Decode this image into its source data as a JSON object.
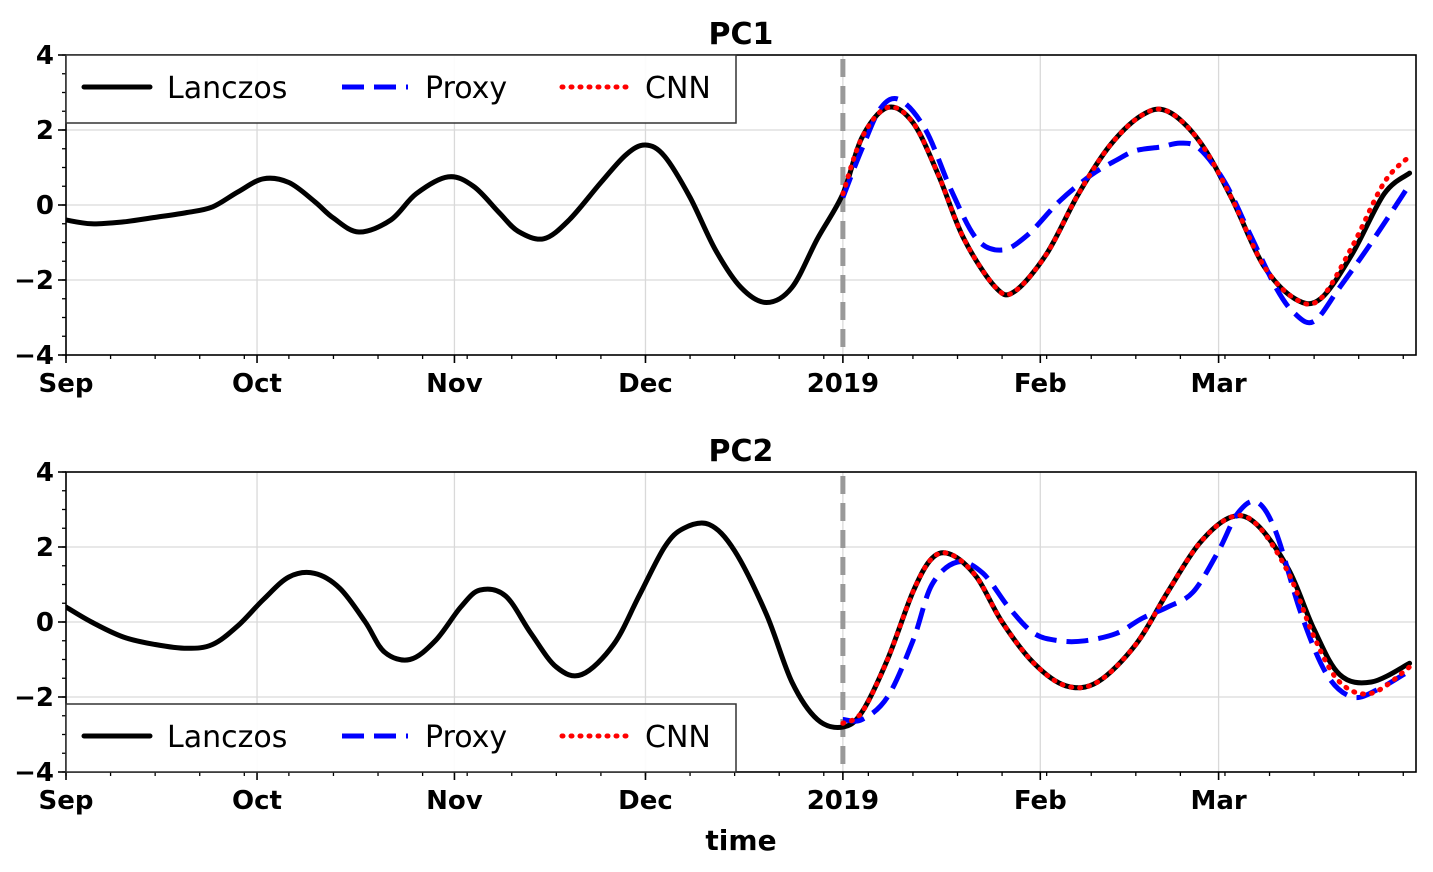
{
  "chart_data": [
    {
      "type": "line",
      "title": "PC1",
      "xlabel": "",
      "ylabel": "",
      "ylim": [
        -4,
        4
      ],
      "xlim": [
        "2018-09-01",
        "2019-04-01"
      ],
      "x_ticks": [
        {
          "date": "2018-09-01",
          "label": "Sep"
        },
        {
          "date": "2018-10-01",
          "label": "Oct"
        },
        {
          "date": "2018-11-01",
          "label": "Nov"
        },
        {
          "date": "2018-12-01",
          "label": "Dec"
        },
        {
          "date": "2019-01-01",
          "label": "2019"
        },
        {
          "date": "2019-02-01",
          "label": "Feb"
        },
        {
          "date": "2019-03-01",
          "label": "Mar"
        }
      ],
      "y_ticks": [
        {
          "value": -4,
          "label": "−4"
        },
        {
          "value": -2,
          "label": "−2"
        },
        {
          "value": 0,
          "label": "0"
        },
        {
          "value": 2,
          "label": "2"
        },
        {
          "value": 4,
          "label": "4"
        }
      ],
      "grid": true,
      "legend_position": "top-left",
      "forecast_start_line": "2019-01-01",
      "series": [
        {
          "name": "Lanczos",
          "color": "#000000",
          "style": "solid",
          "points": [
            [
              "2018-09-01",
              -0.4
            ],
            [
              "2018-09-05",
              -0.5
            ],
            [
              "2018-09-10",
              -0.45
            ],
            [
              "2018-09-15",
              -0.33
            ],
            [
              "2018-09-20",
              -0.2
            ],
            [
              "2018-09-24",
              -0.05
            ],
            [
              "2018-09-28",
              0.35
            ],
            [
              "2018-10-02",
              0.7
            ],
            [
              "2018-10-06",
              0.6
            ],
            [
              "2018-10-10",
              0.1
            ],
            [
              "2018-10-13",
              -0.35
            ],
            [
              "2018-10-17",
              -0.72
            ],
            [
              "2018-10-22",
              -0.4
            ],
            [
              "2018-10-26",
              0.3
            ],
            [
              "2018-10-31",
              0.75
            ],
            [
              "2018-11-04",
              0.5
            ],
            [
              "2018-11-08",
              -0.2
            ],
            [
              "2018-11-11",
              -0.7
            ],
            [
              "2018-11-15",
              -0.9
            ],
            [
              "2018-11-19",
              -0.4
            ],
            [
              "2018-11-24",
              0.6
            ],
            [
              "2018-11-28",
              1.35
            ],
            [
              "2018-12-01",
              1.6
            ],
            [
              "2018-12-04",
              1.3
            ],
            [
              "2018-12-08",
              0.2
            ],
            [
              "2018-12-12",
              -1.2
            ],
            [
              "2018-12-16",
              -2.2
            ],
            [
              "2018-12-20",
              -2.6
            ],
            [
              "2018-12-24",
              -2.2
            ],
            [
              "2018-12-28",
              -0.9
            ],
            [
              "2019-01-01",
              0.3
            ],
            [
              "2019-01-04",
              1.8
            ],
            [
              "2019-01-08",
              2.6
            ],
            [
              "2019-01-12",
              2.2
            ],
            [
              "2019-01-16",
              0.8
            ],
            [
              "2019-01-20",
              -0.9
            ],
            [
              "2019-01-25",
              -2.2
            ],
            [
              "2019-01-28",
              -2.3
            ],
            [
              "2019-02-02",
              -1.3
            ],
            [
              "2019-02-07",
              0.3
            ],
            [
              "2019-02-12",
              1.6
            ],
            [
              "2019-02-17",
              2.4
            ],
            [
              "2019-02-21",
              2.5
            ],
            [
              "2019-02-26",
              1.7
            ],
            [
              "2019-03-03",
              0.2
            ],
            [
              "2019-03-08",
              -1.6
            ],
            [
              "2019-03-13",
              -2.5
            ],
            [
              "2019-03-17",
              -2.5
            ],
            [
              "2019-03-22",
              -1.3
            ],
            [
              "2019-03-27",
              0.3
            ],
            [
              "2019-03-31",
              0.85
            ]
          ]
        },
        {
          "name": "Proxy",
          "color": "#0000ff",
          "style": "dashed",
          "points": [
            [
              "2019-01-01",
              0.2
            ],
            [
              "2019-01-04",
              1.5
            ],
            [
              "2019-01-07",
              2.6
            ],
            [
              "2019-01-10",
              2.8
            ],
            [
              "2019-01-14",
              2.0
            ],
            [
              "2019-01-18",
              0.4
            ],
            [
              "2019-01-22",
              -0.9
            ],
            [
              "2019-01-26",
              -1.2
            ],
            [
              "2019-01-30",
              -0.8
            ],
            [
              "2019-02-04",
              0.1
            ],
            [
              "2019-02-09",
              0.8
            ],
            [
              "2019-02-13",
              1.2
            ],
            [
              "2019-02-16",
              1.45
            ],
            [
              "2019-02-20",
              1.55
            ],
            [
              "2019-02-23",
              1.65
            ],
            [
              "2019-02-26",
              1.5
            ],
            [
              "2019-03-02",
              0.6
            ],
            [
              "2019-03-06",
              -0.8
            ],
            [
              "2019-03-10",
              -2.2
            ],
            [
              "2019-03-13",
              -2.9
            ],
            [
              "2019-03-16",
              -3.1
            ],
            [
              "2019-03-20",
              -2.2
            ],
            [
              "2019-03-25",
              -1.0
            ],
            [
              "2019-03-31",
              0.55
            ]
          ]
        },
        {
          "name": "CNN",
          "color": "#ff0000",
          "style": "dotted",
          "points": [
            [
              "2019-01-01",
              0.3
            ],
            [
              "2019-01-04",
              1.8
            ],
            [
              "2019-01-08",
              2.6
            ],
            [
              "2019-01-12",
              2.2
            ],
            [
              "2019-01-16",
              0.8
            ],
            [
              "2019-01-20",
              -0.9
            ],
            [
              "2019-01-25",
              -2.2
            ],
            [
              "2019-01-28",
              -2.3
            ],
            [
              "2019-02-02",
              -1.3
            ],
            [
              "2019-02-07",
              0.3
            ],
            [
              "2019-02-12",
              1.6
            ],
            [
              "2019-02-17",
              2.4
            ],
            [
              "2019-02-21",
              2.5
            ],
            [
              "2019-02-26",
              1.7
            ],
            [
              "2019-03-03",
              0.2
            ],
            [
              "2019-03-08",
              -1.6
            ],
            [
              "2019-03-13",
              -2.5
            ],
            [
              "2019-03-17",
              -2.5
            ],
            [
              "2019-03-22",
              -1.1
            ],
            [
              "2019-03-27",
              0.6
            ],
            [
              "2019-03-31",
              1.3
            ]
          ]
        }
      ]
    },
    {
      "type": "line",
      "title": "PC2",
      "xlabel": "time",
      "ylabel": "",
      "ylim": [
        -4,
        4
      ],
      "xlim": [
        "2018-09-01",
        "2019-04-01"
      ],
      "x_ticks": [
        {
          "date": "2018-09-01",
          "label": "Sep"
        },
        {
          "date": "2018-10-01",
          "label": "Oct"
        },
        {
          "date": "2018-11-01",
          "label": "Nov"
        },
        {
          "date": "2018-12-01",
          "label": "Dec"
        },
        {
          "date": "2019-01-01",
          "label": "2019"
        },
        {
          "date": "2019-02-01",
          "label": "Feb"
        },
        {
          "date": "2019-03-01",
          "label": "Mar"
        }
      ],
      "y_ticks": [
        {
          "value": -4,
          "label": "−4"
        },
        {
          "value": -2,
          "label": "−2"
        },
        {
          "value": 0,
          "label": "0"
        },
        {
          "value": 2,
          "label": "2"
        },
        {
          "value": 4,
          "label": "4"
        }
      ],
      "grid": true,
      "legend_position": "bottom-left",
      "forecast_start_line": "2019-01-01",
      "series": [
        {
          "name": "Lanczos",
          "color": "#000000",
          "style": "solid",
          "points": [
            [
              "2018-09-01",
              0.4
            ],
            [
              "2018-09-05",
              0.0
            ],
            [
              "2018-09-10",
              -0.4
            ],
            [
              "2018-09-15",
              -0.6
            ],
            [
              "2018-09-20",
              -0.7
            ],
            [
              "2018-09-24",
              -0.6
            ],
            [
              "2018-09-28",
              -0.1
            ],
            [
              "2018-10-02",
              0.6
            ],
            [
              "2018-10-06",
              1.2
            ],
            [
              "2018-10-10",
              1.3
            ],
            [
              "2018-10-14",
              0.9
            ],
            [
              "2018-10-18",
              0.0
            ],
            [
              "2018-10-21",
              -0.8
            ],
            [
              "2018-10-25",
              -1.0
            ],
            [
              "2018-10-29",
              -0.5
            ],
            [
              "2018-11-02",
              0.4
            ],
            [
              "2018-11-05",
              0.85
            ],
            [
              "2018-11-09",
              0.7
            ],
            [
              "2018-11-13",
              -0.3
            ],
            [
              "2018-11-17",
              -1.2
            ],
            [
              "2018-11-21",
              -1.4
            ],
            [
              "2018-11-26",
              -0.6
            ],
            [
              "2018-11-30",
              0.7
            ],
            [
              "2018-12-04",
              2.0
            ],
            [
              "2018-12-07",
              2.5
            ],
            [
              "2018-12-11",
              2.6
            ],
            [
              "2018-12-15",
              1.9
            ],
            [
              "2018-12-20",
              0.2
            ],
            [
              "2018-12-24",
              -1.6
            ],
            [
              "2018-12-28",
              -2.6
            ],
            [
              "2019-01-01",
              -2.8
            ],
            [
              "2019-01-04",
              -2.4
            ],
            [
              "2019-01-08",
              -1.0
            ],
            [
              "2019-01-12",
              0.8
            ],
            [
              "2019-01-15",
              1.7
            ],
            [
              "2019-01-18",
              1.8
            ],
            [
              "2019-01-22",
              1.2
            ],
            [
              "2019-01-26",
              0.0
            ],
            [
              "2019-01-31",
              -1.1
            ],
            [
              "2019-02-05",
              -1.7
            ],
            [
              "2019-02-10",
              -1.6
            ],
            [
              "2019-02-16",
              -0.6
            ],
            [
              "2019-02-21",
              0.8
            ],
            [
              "2019-02-26",
              2.1
            ],
            [
              "2019-03-03",
              2.8
            ],
            [
              "2019-03-07",
              2.6
            ],
            [
              "2019-03-12",
              1.4
            ],
            [
              "2019-03-16",
              -0.2
            ],
            [
              "2019-03-20",
              -1.4
            ],
            [
              "2019-03-25",
              -1.6
            ],
            [
              "2019-03-31",
              -1.1
            ]
          ]
        },
        {
          "name": "Proxy",
          "color": "#0000ff",
          "style": "dashed",
          "points": [
            [
              "2019-01-01",
              -2.6
            ],
            [
              "2019-01-04",
              -2.6
            ],
            [
              "2019-01-08",
              -2.0
            ],
            [
              "2019-01-12",
              -0.5
            ],
            [
              "2019-01-15",
              1.0
            ],
            [
              "2019-01-19",
              1.6
            ],
            [
              "2019-01-23",
              1.3
            ],
            [
              "2019-01-27",
              0.4
            ],
            [
              "2019-01-31",
              -0.3
            ],
            [
              "2019-02-04",
              -0.5
            ],
            [
              "2019-02-08",
              -0.5
            ],
            [
              "2019-02-13",
              -0.3
            ],
            [
              "2019-02-17",
              0.1
            ],
            [
              "2019-02-21",
              0.4
            ],
            [
              "2019-02-25",
              0.8
            ],
            [
              "2019-03-01",
              1.9
            ],
            [
              "2019-03-04",
              2.9
            ],
            [
              "2019-03-07",
              3.2
            ],
            [
              "2019-03-10",
              2.4
            ],
            [
              "2019-03-14",
              0.2
            ],
            [
              "2019-03-18",
              -1.4
            ],
            [
              "2019-03-22",
              -2.0
            ],
            [
              "2019-03-26",
              -1.8
            ],
            [
              "2019-03-31",
              -1.3
            ]
          ]
        },
        {
          "name": "CNN",
          "color": "#ff0000",
          "style": "dotted",
          "points": [
            [
              "2019-01-01",
              -2.7
            ],
            [
              "2019-01-04",
              -2.4
            ],
            [
              "2019-01-08",
              -1.0
            ],
            [
              "2019-01-12",
              0.8
            ],
            [
              "2019-01-15",
              1.7
            ],
            [
              "2019-01-18",
              1.8
            ],
            [
              "2019-01-22",
              1.2
            ],
            [
              "2019-01-26",
              0.0
            ],
            [
              "2019-01-31",
              -1.1
            ],
            [
              "2019-02-05",
              -1.7
            ],
            [
              "2019-02-10",
              -1.6
            ],
            [
              "2019-02-16",
              -0.6
            ],
            [
              "2019-02-21",
              0.8
            ],
            [
              "2019-02-26",
              2.1
            ],
            [
              "2019-03-03",
              2.8
            ],
            [
              "2019-03-07",
              2.6
            ],
            [
              "2019-03-12",
              1.3
            ],
            [
              "2019-03-16",
              -0.4
            ],
            [
              "2019-03-20",
              -1.6
            ],
            [
              "2019-03-25",
              -1.9
            ],
            [
              "2019-03-31",
              -1.2
            ]
          ]
        }
      ]
    }
  ]
}
